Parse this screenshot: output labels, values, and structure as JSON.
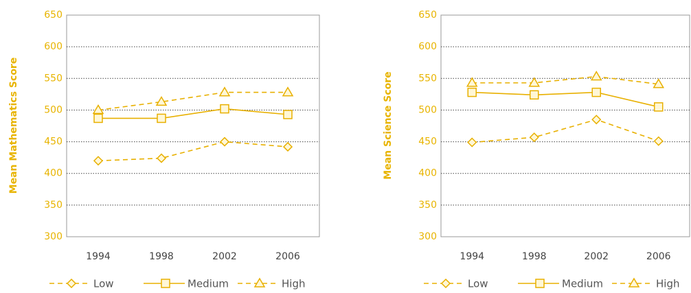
{
  "chart_data": [
    {
      "type": "line",
      "y_label": "Mean Mathematics Score",
      "categories": [
        "1994",
        "1998",
        "2002",
        "2006"
      ],
      "ylim": [
        300,
        650
      ],
      "yticks": [
        300,
        350,
        400,
        450,
        500,
        550,
        600,
        650
      ],
      "grid": true,
      "series": [
        {
          "name": "Low",
          "color": "#e8b000",
          "marker": "diamond",
          "dash": "dashed",
          "values": [
            420,
            424,
            450,
            442
          ]
        },
        {
          "name": "Medium",
          "color": "#e8b000",
          "marker": "square",
          "dash": "solid",
          "values": [
            487,
            487,
            502,
            493
          ]
        },
        {
          "name": "High",
          "color": "#e8b000",
          "marker": "triangle",
          "dash": "dashed",
          "values": [
            500,
            513,
            528,
            528
          ]
        }
      ]
    },
    {
      "type": "line",
      "y_label": "Mean Science Score",
      "categories": [
        "1994",
        "1998",
        "2002",
        "2006"
      ],
      "ylim": [
        300,
        650
      ],
      "yticks": [
        300,
        350,
        400,
        450,
        500,
        550,
        600,
        650
      ],
      "grid": true,
      "series": [
        {
          "name": "Low",
          "color": "#e8b000",
          "marker": "diamond",
          "dash": "dashed",
          "values": [
            449,
            457,
            485,
            451
          ]
        },
        {
          "name": "Medium",
          "color": "#e8b000",
          "marker": "square",
          "dash": "solid",
          "values": [
            528,
            524,
            528,
            505
          ]
        },
        {
          "name": "High",
          "color": "#e8b000",
          "marker": "triangle",
          "dash": "dashed",
          "values": [
            543,
            543,
            553,
            541
          ]
        }
      ]
    }
  ]
}
